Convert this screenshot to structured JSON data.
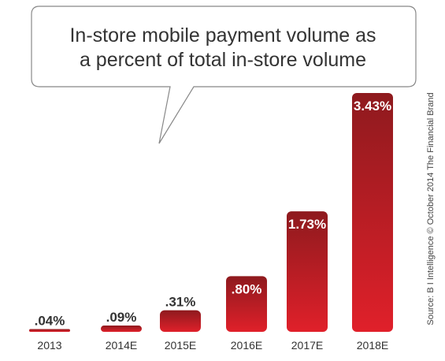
{
  "chart_data": {
    "type": "bar",
    "title_lines": [
      "In-store mobile payment volume as",
      "a percent of total in-store volume"
    ],
    "categories": [
      "2013",
      "2014E",
      "2015E",
      "2016E",
      "2017E",
      "2018E"
    ],
    "values": [
      0.04,
      0.09,
      0.31,
      0.8,
      1.73,
      3.43
    ],
    "value_labels": [
      ".04%",
      ".09%",
      ".31%",
      ".80%",
      "1.73%",
      "3.43%"
    ],
    "source": "Source: B I Intelligence © October 2014 The Financial Brand",
    "grid": false,
    "legend": "none",
    "colors": {
      "bar_top": "#8e1a1e",
      "bar_bottom": "#e0202a",
      "label_dark": "#333333",
      "label_light": "#ffffff"
    }
  }
}
